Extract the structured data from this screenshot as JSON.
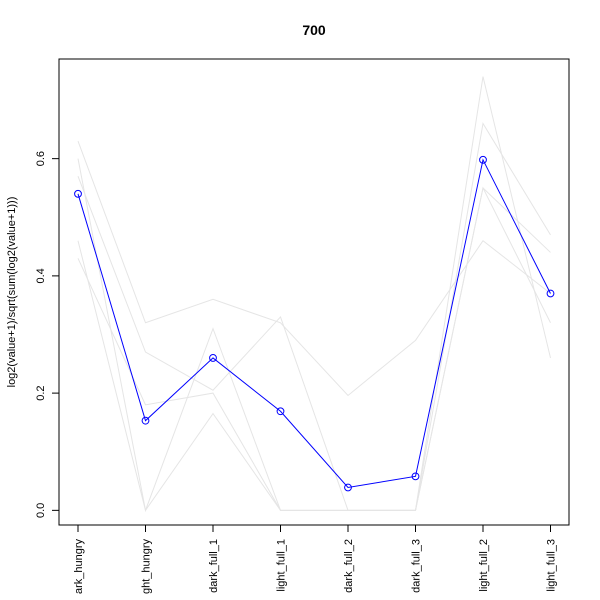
{
  "chart_data": {
    "type": "line",
    "title": "700",
    "xlabel": "",
    "ylabel": "log2(value+1)/sqrt(sum(log2(value+1)))",
    "categories": [
      "dark_hungry",
      "light_hungry",
      "dark_full_1",
      "light_full_1",
      "dark_full_2",
      "dark_full_3",
      "light_full_2",
      "light_full_3"
    ],
    "category_labels": [
      "ark_hungry",
      "ght_hungry",
      "dark_full_1",
      "light_full_1",
      "dark_full_2",
      "dark_full_3",
      "light_full_2",
      "light_full_3"
    ],
    "yticks": [
      0.0,
      0.2,
      0.4,
      0.6
    ],
    "ytick_labels": [
      "0.0",
      "0.2",
      "0.4",
      "0.6"
    ],
    "ylim": [
      -0.025,
      0.77
    ],
    "highlight": {
      "values": [
        0.54,
        0.153,
        0.26,
        0.169,
        0.039,
        0.058,
        0.598,
        0.37
      ],
      "color": "#0000ff"
    },
    "background_series": [
      [
        0.63,
        0.32,
        0.36,
        0.32,
        0.196,
        0.29,
        0.46,
        0.37
      ],
      [
        0.6,
        0.0,
        0.31,
        0.0,
        0.0,
        0.0,
        0.74,
        0.26
      ],
      [
        0.57,
        0.27,
        0.205,
        0.33,
        0.0,
        0.0,
        0.55,
        0.44
      ],
      [
        0.46,
        0.0,
        0.165,
        0.0,
        0.0,
        0.0,
        0.66,
        0.47
      ],
      [
        0.43,
        0.18,
        0.2,
        0.0,
        0.0,
        0.0,
        0.55,
        0.32
      ]
    ],
    "background_color": "#e5e5e5",
    "grid": false,
    "legend": "none"
  }
}
